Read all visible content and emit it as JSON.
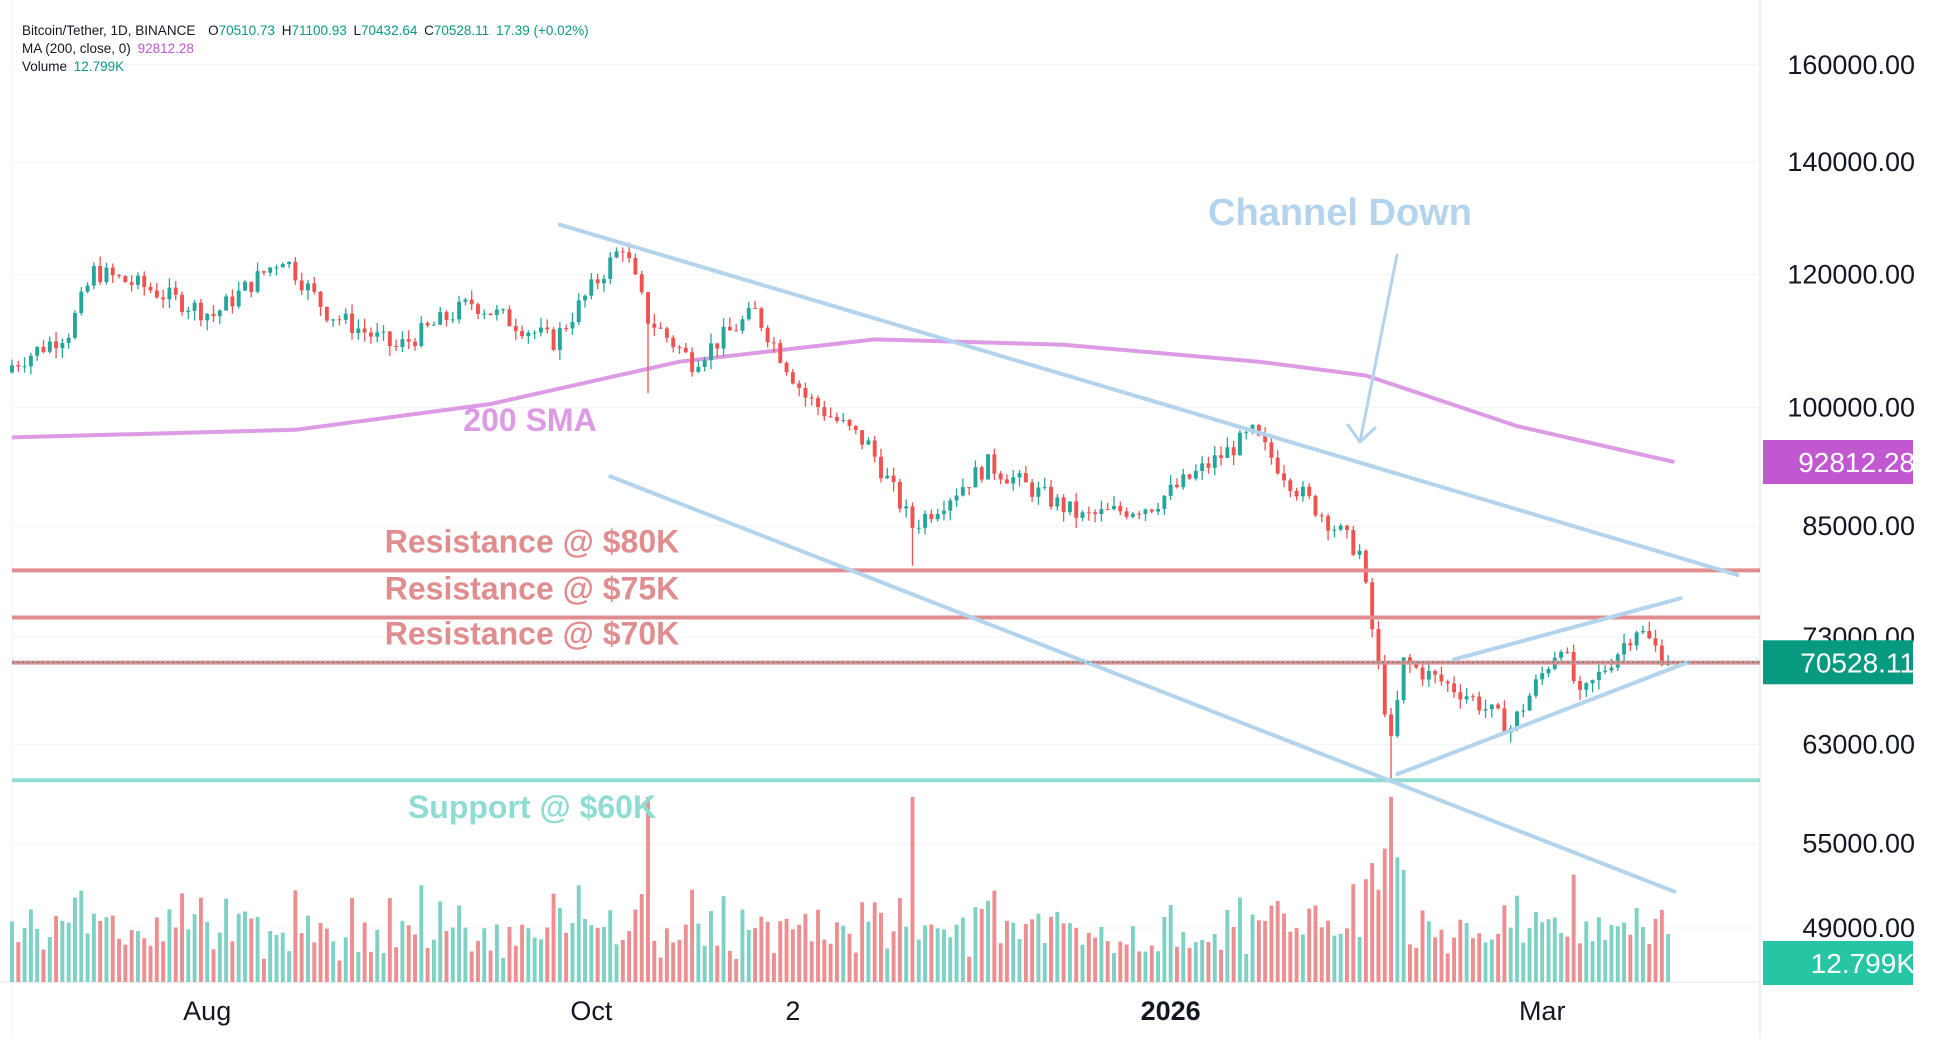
{
  "legend": {
    "symbol": "Bitcoin/Tether, 1D, BINANCE",
    "open_label": "O",
    "open": "70510.73",
    "high_label": "H",
    "high": "71100.93",
    "low_label": "L",
    "low": "70432.64",
    "close_label": "C",
    "close": "70528.11",
    "change": "17.39 (+0.02%)",
    "ma_label": "MA (200, close, 0)",
    "ma_value": "92812.28",
    "volume_label": "Volume",
    "volume_value": "12.799K"
  },
  "colors": {
    "up": "#26a69a",
    "down": "#ef5350",
    "up_vol": "#7fd1c3",
    "down_vol": "#ec8f91",
    "sma": "#dc9be4",
    "channel": "#b3d4ec",
    "resistance": "#e08d8f",
    "support": "#8fdcd2",
    "price_badge": "#089981",
    "sma_badge": "#c158d0",
    "volume_badge": "#26c6a4"
  },
  "chart_data": {
    "type": "candlestick",
    "symbol": "Bitcoin/Tether",
    "interval": "1D",
    "exchange": "BINANCE",
    "yscale": "log",
    "ylim": [
      45500,
      172000
    ],
    "y_ticks": [
      "160000.00",
      "140000.00",
      "120000.00",
      "100000.00",
      "85000.00",
      "73000.00",
      "63000.00",
      "55000.00",
      "49000.00"
    ],
    "x_ticks": [
      {
        "label": "Aug",
        "date": "2025-08-01"
      },
      {
        "label": "Oct",
        "date": "2025-10-01"
      },
      {
        "label": "2",
        "date": "2025-11-02"
      },
      {
        "label": "2026",
        "date": "2026-01-01",
        "bold": true
      },
      {
        "label": "Mar",
        "date": "2026-03-01"
      }
    ],
    "x_range": [
      "2025-07-01",
      "2026-04-03"
    ],
    "price_path": [
      {
        "date": "2025-07-01",
        "price": 106000
      },
      {
        "date": "2025-07-10",
        "price": 111000
      },
      {
        "date": "2025-07-14",
        "price": 120500
      },
      {
        "date": "2025-07-22",
        "price": 118000
      },
      {
        "date": "2025-08-02",
        "price": 113500
      },
      {
        "date": "2025-08-13",
        "price": 123000
      },
      {
        "date": "2025-08-20",
        "price": 114000
      },
      {
        "date": "2025-08-31",
        "price": 108500
      },
      {
        "date": "2025-09-12",
        "price": 115500
      },
      {
        "date": "2025-09-25",
        "price": 109500
      },
      {
        "date": "2025-10-06",
        "price": 125000
      },
      {
        "date": "2025-10-10",
        "price": 113000
      },
      {
        "date": "2025-10-17",
        "price": 106500
      },
      {
        "date": "2025-10-27",
        "price": 114000
      },
      {
        "date": "2025-11-04",
        "price": 101500
      },
      {
        "date": "2025-11-14",
        "price": 95000
      },
      {
        "date": "2025-11-21",
        "price": 85000
      },
      {
        "date": "2025-12-03",
        "price": 92500
      },
      {
        "date": "2025-12-18",
        "price": 86000
      },
      {
        "date": "2025-12-29",
        "price": 87500
      },
      {
        "date": "2026-01-14",
        "price": 96500
      },
      {
        "date": "2026-01-21",
        "price": 89500
      },
      {
        "date": "2026-01-31",
        "price": 82000
      },
      {
        "date": "2026-02-05",
        "price": 63000
      },
      {
        "date": "2026-02-07",
        "price": 70500
      },
      {
        "date": "2026-02-17",
        "price": 67500
      },
      {
        "date": "2026-02-24",
        "price": 64500
      },
      {
        "date": "2026-03-04",
        "price": 72500
      },
      {
        "date": "2026-03-07",
        "price": 67000
      },
      {
        "date": "2026-03-16",
        "price": 74000
      },
      {
        "date": "2026-03-21",
        "price": 70528
      }
    ],
    "wicks": [
      {
        "date": "2025-10-10",
        "low": 102000
      },
      {
        "date": "2025-11-21",
        "low": 80500
      },
      {
        "date": "2026-02-05",
        "low": 60000
      }
    ],
    "sma_200": [
      {
        "date": "2025-07-01",
        "value": 96000
      },
      {
        "date": "2025-08-15",
        "value": 97000
      },
      {
        "date": "2025-09-15",
        "value": 100500
      },
      {
        "date": "2025-10-15",
        "value": 106500
      },
      {
        "date": "2025-11-15",
        "value": 109800
      },
      {
        "date": "2025-12-15",
        "value": 109000
      },
      {
        "date": "2026-01-15",
        "value": 106500
      },
      {
        "date": "2026-02-01",
        "value": 104500
      },
      {
        "date": "2026-02-25",
        "value": 97500
      },
      {
        "date": "2026-03-22",
        "value": 92812
      }
    ],
    "volume": {
      "max_label": "12.799K"
    },
    "levels": [
      {
        "name": "resistance-80k",
        "label": "Resistance @ $80K",
        "price": 80000
      },
      {
        "name": "resistance-75k",
        "label": "Resistance @ $75K",
        "price": 75000
      },
      {
        "name": "resistance-70k",
        "label": "Resistance @ $70K",
        "price": 70500
      },
      {
        "name": "support-60k",
        "label": "Support @ $60K",
        "price": 60000
      }
    ],
    "channel_down": {
      "upper": [
        {
          "date": "2025-09-26",
          "price": 128500
        },
        {
          "date": "2026-04-01",
          "price": 79500
        }
      ],
      "lower": [
        {
          "date": "2025-10-04",
          "price": 91000
        },
        {
          "date": "2026-03-22",
          "price": 51500
        }
      ]
    },
    "channel_up": {
      "upper": [
        {
          "date": "2026-02-15",
          "price": 70800
        },
        {
          "date": "2026-03-23",
          "price": 77000
        }
      ],
      "lower": [
        {
          "date": "2026-02-06",
          "price": 60500
        },
        {
          "date": "2026-03-24",
          "price": 70500
        }
      ]
    },
    "annotations": {
      "sma_label": "200 SMA",
      "channel_label": "Channel Down"
    },
    "last_price": "70528.11",
    "sma_value": "92812.28",
    "volume_badge": "12.799K"
  }
}
